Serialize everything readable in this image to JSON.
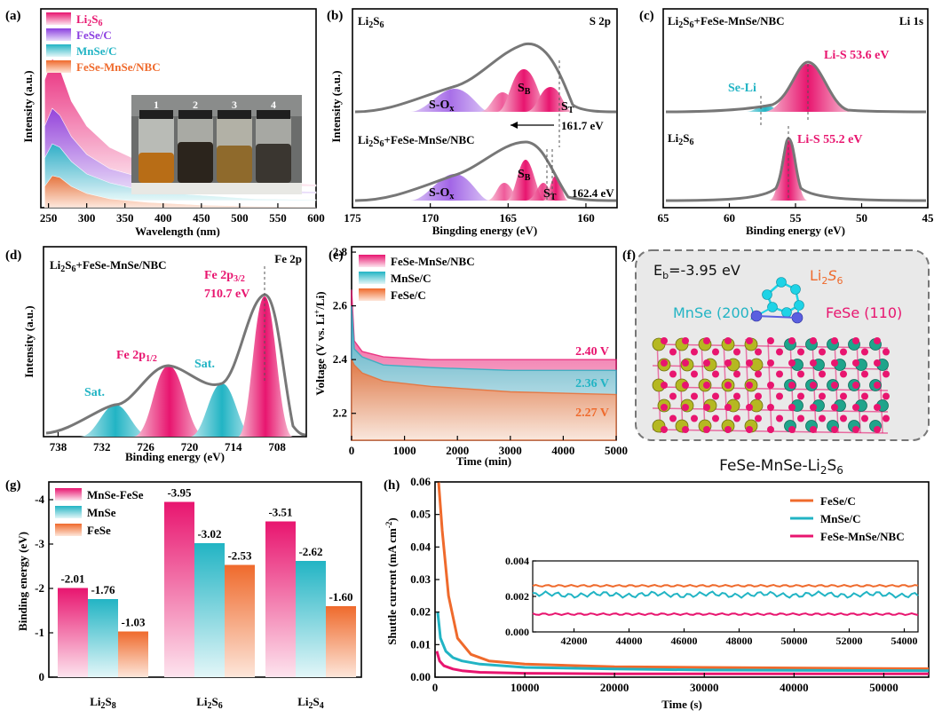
{
  "colors": {
    "pink": "#e8156f",
    "pink_light": "#f7c6d8",
    "purple": "#8b3fe0",
    "purple_light": "#d2b8f3",
    "cyan": "#22b4c4",
    "cyan_light": "#bfe8ee",
    "orange": "#ef6a2c",
    "orange_light": "#fbd1bd",
    "olive": "#b5b821",
    "teal": "#1fa48b",
    "blue_atom": "#5a5fe0",
    "grey": "#777777"
  },
  "panels": {
    "a": "(a)",
    "b": "(b)",
    "c": "(c)",
    "d": "(d)",
    "e": "(e)",
    "f": "(f)",
    "g": "(g)",
    "h": "(h)"
  },
  "chart_data": [
    {
      "id": "a",
      "type": "area",
      "xlabel": "Wavelength (nm)",
      "ylabel": "Intensity (a.u.)",
      "xlim": [
        240,
        600
      ],
      "xticks": [
        250,
        300,
        350,
        400,
        450,
        500,
        550,
        600
      ],
      "legend": [
        "Li2S6",
        "FeSe/C",
        "MnSe/C",
        "FeSe-MnSe/NBC"
      ],
      "legend_placement": "top-left",
      "series": [
        {
          "name": "Li2S6",
          "x": [
            245,
            255,
            265,
            280,
            300,
            330,
            380,
            450,
            520,
            600
          ],
          "values": [
            0.6,
            0.72,
            0.66,
            0.48,
            0.34,
            0.22,
            0.12,
            0.06,
            0.03,
            0.01
          ]
        },
        {
          "name": "FeSe/C",
          "x": [
            245,
            255,
            265,
            280,
            300,
            330,
            380,
            450,
            520,
            600
          ],
          "values": [
            0.38,
            0.48,
            0.44,
            0.32,
            0.22,
            0.14,
            0.08,
            0.04,
            0.02,
            0.01
          ]
        },
        {
          "name": "MnSe/C",
          "x": [
            245,
            255,
            265,
            280,
            300,
            330,
            380,
            450,
            520,
            600
          ],
          "values": [
            0.24,
            0.32,
            0.3,
            0.22,
            0.15,
            0.1,
            0.05,
            0.03,
            0.01,
            0.005
          ]
        },
        {
          "name": "FeSe-MnSe/NBC",
          "x": [
            245,
            255,
            265,
            280,
            300,
            330,
            380,
            450,
            520,
            600
          ],
          "values": [
            0.12,
            0.18,
            0.17,
            0.12,
            0.08,
            0.05,
            0.03,
            0.015,
            0.008,
            0.004
          ]
        }
      ],
      "inset_labels": [
        "1",
        "2",
        "3",
        "4"
      ]
    },
    {
      "id": "b",
      "type": "line",
      "title_left": "Li2S6",
      "title_right": "S 2p",
      "xlabel": "Bingding energy (eV)",
      "ylabel": "Intensity (a.u.)",
      "xlim": [
        175,
        158
      ],
      "xticks": [
        175,
        170,
        165,
        160
      ],
      "lower_label": "Li2S6+FeSe-MnSe/NBC",
      "peaks": [
        "S-Ox",
        "SB",
        "ST"
      ],
      "annotations": [
        "161.7 eV",
        "162.4 eV"
      ]
    },
    {
      "id": "c",
      "type": "line",
      "title_left": "Li2S6+FeSe-MnSe/NBC",
      "title_right": "Li 1s",
      "xlabel": "Binding energy (eV)",
      "xlim": [
        65,
        45
      ],
      "xticks": [
        65,
        60,
        55,
        50,
        45
      ],
      "lower_label": "Li2S6",
      "annotations": [
        "Se-Li",
        "Li-S 53.6 eV",
        "Li-S 55.2 eV"
      ]
    },
    {
      "id": "d",
      "type": "line",
      "title_left": "Li2S6+FeSe-MnSe/NBC",
      "title_right": "Fe 2p",
      "xlabel": "Binding energy (eV)",
      "ylabel": "Intensity (a.u.)",
      "xlim": [
        740,
        704
      ],
      "xticks": [
        738,
        732,
        726,
        720,
        714,
        708
      ],
      "annotations": [
        "Fe 2p3/2",
        "710.7 eV",
        "Fe 2p1/2",
        "Sat.",
        "Sat."
      ]
    },
    {
      "id": "e",
      "type": "area",
      "xlabel": "Time (min)",
      "ylabel": "Voltage (V vs. Li+/Li)",
      "xlim": [
        0,
        5000
      ],
      "ylim": [
        2.1,
        2.82
      ],
      "xticks": [
        0,
        1000,
        2000,
        3000,
        4000,
        5000
      ],
      "yticks": [
        2.2,
        2.4,
        2.6,
        2.8
      ],
      "legend": [
        "FeSe-MnSe/NBC",
        "MnSe/C",
        "FeSe/C"
      ],
      "legend_placement": "top-left",
      "series": [
        {
          "name": "FeSe-MnSe/NBC",
          "x": [
            0,
            50,
            200,
            600,
            1500,
            3000,
            5000
          ],
          "values": [
            2.66,
            2.47,
            2.43,
            2.41,
            2.4,
            2.4,
            2.4
          ]
        },
        {
          "name": "MnSe/C",
          "x": [
            0,
            50,
            200,
            600,
            1500,
            3000,
            5000
          ],
          "values": [
            2.6,
            2.44,
            2.41,
            2.38,
            2.37,
            2.36,
            2.36
          ]
        },
        {
          "name": "FeSe/C",
          "x": [
            0,
            50,
            200,
            600,
            1500,
            3000,
            5000
          ],
          "values": [
            2.4,
            2.38,
            2.35,
            2.32,
            2.3,
            2.28,
            2.27
          ]
        }
      ],
      "annotations": [
        "2.40 V",
        "2.36 V",
        "2.27 V"
      ]
    },
    {
      "id": "g",
      "type": "bar",
      "ylabel": "Binding energy (eV)",
      "ylim": [
        0,
        -4.4
      ],
      "yticks": [
        0,
        -1,
        -2,
        -3,
        -4
      ],
      "categories": [
        "Li2S8",
        "Li2S6",
        "Li2S4"
      ],
      "legend": [
        "MnSe-FeSe",
        "MnSe",
        "FeSe"
      ],
      "legend_placement": "top-left",
      "series": [
        {
          "name": "MnSe-FeSe",
          "values": [
            -2.01,
            -3.95,
            -3.51
          ]
        },
        {
          "name": "MnSe",
          "values": [
            -1.76,
            -3.02,
            -2.62
          ]
        },
        {
          "name": "FeSe",
          "values": [
            -1.03,
            -2.53,
            -1.6
          ]
        }
      ],
      "value_labels": [
        "-2.01",
        "-1.76",
        "-1.03",
        "-3.95",
        "-3.02",
        "-2.53",
        "-3.51",
        "-2.62",
        "-1.60"
      ]
    },
    {
      "id": "h",
      "type": "line",
      "xlabel": "Time (s)",
      "ylabel": "Shuttle current (mA cm-2)",
      "xlim": [
        0,
        55000
      ],
      "ylim": [
        0,
        0.06
      ],
      "xticks": [
        0,
        10000,
        20000,
        30000,
        40000,
        50000
      ],
      "yticks": [
        0.0,
        0.01,
        0.02,
        0.03,
        0.04,
        0.05,
        0.06
      ],
      "legend": [
        "FeSe/C",
        "MnSe/C",
        "FeSe-MnSe/NBC"
      ],
      "legend_placement": "top-right",
      "series": [
        {
          "name": "FeSe/C",
          "x": [
            400,
            800,
            1500,
            2500,
            4000,
            6000,
            10000,
            20000,
            30000,
            55000
          ],
          "values": [
            0.06,
            0.045,
            0.025,
            0.012,
            0.007,
            0.005,
            0.004,
            0.0032,
            0.003,
            0.0026
          ]
        },
        {
          "name": "MnSe/C",
          "x": [
            300,
            600,
            1200,
            2000,
            3000,
            5000,
            10000,
            20000,
            30000,
            55000
          ],
          "values": [
            0.02,
            0.012,
            0.008,
            0.006,
            0.005,
            0.004,
            0.003,
            0.0025,
            0.0022,
            0.002
          ]
        },
        {
          "name": "FeSe-MnSe/NBC",
          "x": [
            200,
            500,
            1000,
            2000,
            3000,
            5000,
            10000,
            20000,
            55000
          ],
          "values": [
            0.008,
            0.005,
            0.0035,
            0.0025,
            0.002,
            0.0015,
            0.0012,
            0.001,
            0.001
          ]
        }
      ],
      "inset": {
        "xlim": [
          40500,
          54500
        ],
        "ylim": [
          0,
          0.004
        ],
        "xticks": [
          42000,
          44000,
          46000,
          48000,
          50000,
          52000,
          54000
        ],
        "yticks": [
          "0.000",
          "0.002",
          "0.004"
        ],
        "levels": {
          "FeSe/C": 0.0026,
          "MnSe/C": 0.0021,
          "FeSe-MnSe/NBC": 0.001
        }
      }
    }
  ],
  "panel_f": {
    "eb": "Eb=-3.95 eV",
    "li2s6": "Li2S6",
    "mnse": "MnSe (200)",
    "fese": "FeSe (110)",
    "caption": "FeSe-MnSe-Li2S6"
  }
}
